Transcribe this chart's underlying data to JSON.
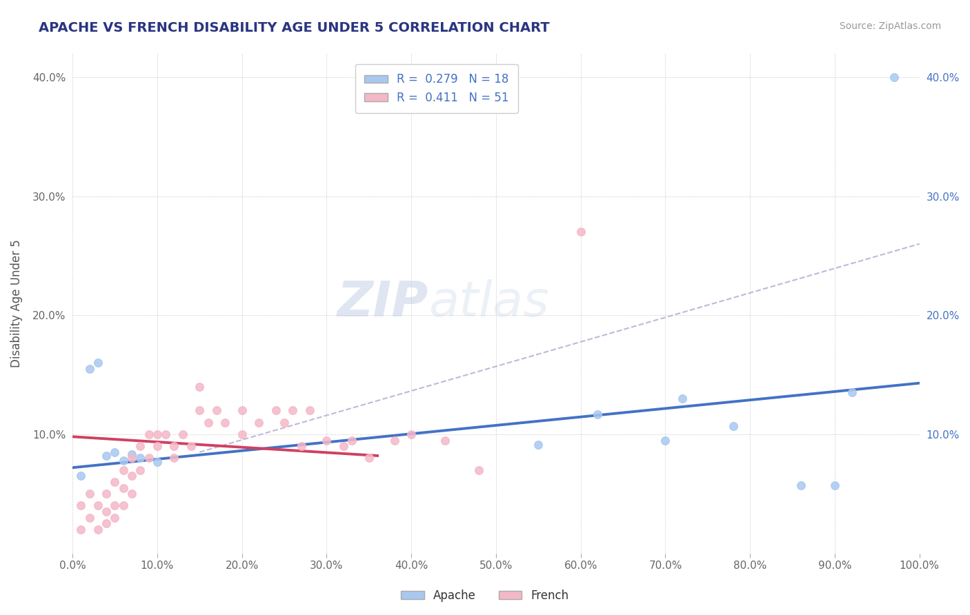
{
  "title": "APACHE VS FRENCH DISABILITY AGE UNDER 5 CORRELATION CHART",
  "source": "Source: ZipAtlas.com",
  "ylabel": "Disability Age Under 5",
  "xlim": [
    0.0,
    1.0
  ],
  "ylim": [
    0.0,
    0.42
  ],
  "xticks": [
    0.0,
    0.1,
    0.2,
    0.3,
    0.4,
    0.5,
    0.6,
    0.7,
    0.8,
    0.9,
    1.0
  ],
  "xticklabels": [
    "0.0%",
    "10.0%",
    "20.0%",
    "30.0%",
    "40.0%",
    "50.0%",
    "60.0%",
    "70.0%",
    "80.0%",
    "90.0%",
    "100.0%"
  ],
  "yticks": [
    0.0,
    0.1,
    0.2,
    0.3,
    0.4
  ],
  "yticklabels_left": [
    "",
    "10.0%",
    "20.0%",
    "30.0%",
    "40.0%"
  ],
  "yticklabels_right": [
    "",
    "10.0%",
    "20.0%",
    "30.0%",
    "40.0%"
  ],
  "legend_r_apache": "0.279",
  "legend_n_apache": "18",
  "legend_r_french": "0.411",
  "legend_n_french": "51",
  "apache_color": "#a8c8f0",
  "french_color": "#f4b8c8",
  "apache_line_color": "#4472c4",
  "french_line_color": "#d04060",
  "trend_line_color": "#c0b8d8",
  "watermark_zip": "ZIP",
  "watermark_atlas": "atlas",
  "apache_scatter_x": [
    0.01,
    0.02,
    0.03,
    0.04,
    0.05,
    0.06,
    0.07,
    0.08,
    0.1,
    0.55,
    0.62,
    0.7,
    0.72,
    0.78,
    0.86,
    0.9,
    0.92,
    0.97
  ],
  "apache_scatter_y": [
    0.065,
    0.155,
    0.16,
    0.082,
    0.085,
    0.078,
    0.083,
    0.08,
    0.077,
    0.091,
    0.117,
    0.095,
    0.13,
    0.107,
    0.057,
    0.057,
    0.135,
    0.4
  ],
  "french_scatter_x": [
    0.01,
    0.01,
    0.02,
    0.02,
    0.03,
    0.03,
    0.04,
    0.04,
    0.04,
    0.05,
    0.05,
    0.05,
    0.06,
    0.06,
    0.06,
    0.07,
    0.07,
    0.07,
    0.08,
    0.08,
    0.09,
    0.09,
    0.1,
    0.1,
    0.11,
    0.12,
    0.12,
    0.13,
    0.14,
    0.15,
    0.15,
    0.16,
    0.17,
    0.18,
    0.2,
    0.2,
    0.22,
    0.24,
    0.25,
    0.26,
    0.27,
    0.28,
    0.3,
    0.32,
    0.33,
    0.35,
    0.38,
    0.4,
    0.44,
    0.48,
    0.6
  ],
  "french_scatter_y": [
    0.04,
    0.02,
    0.05,
    0.03,
    0.04,
    0.02,
    0.05,
    0.035,
    0.025,
    0.06,
    0.04,
    0.03,
    0.07,
    0.055,
    0.04,
    0.08,
    0.065,
    0.05,
    0.09,
    0.07,
    0.1,
    0.08,
    0.1,
    0.09,
    0.1,
    0.09,
    0.08,
    0.1,
    0.09,
    0.12,
    0.14,
    0.11,
    0.12,
    0.11,
    0.12,
    0.1,
    0.11,
    0.12,
    0.11,
    0.12,
    0.09,
    0.12,
    0.095,
    0.09,
    0.095,
    0.08,
    0.095,
    0.1,
    0.095,
    0.07,
    0.27
  ],
  "apache_trend_x0": 0.0,
  "apache_trend_y0": 0.072,
  "apache_trend_x1": 1.0,
  "apache_trend_y1": 0.143,
  "french_trend_x0": 0.0,
  "french_trend_y0": 0.098,
  "french_trend_x1": 0.36,
  "french_trend_y1": 0.082,
  "dashed_trend_x0": 0.15,
  "dashed_trend_y0": 0.085,
  "dashed_trend_x1": 1.0,
  "dashed_trend_y1": 0.26
}
